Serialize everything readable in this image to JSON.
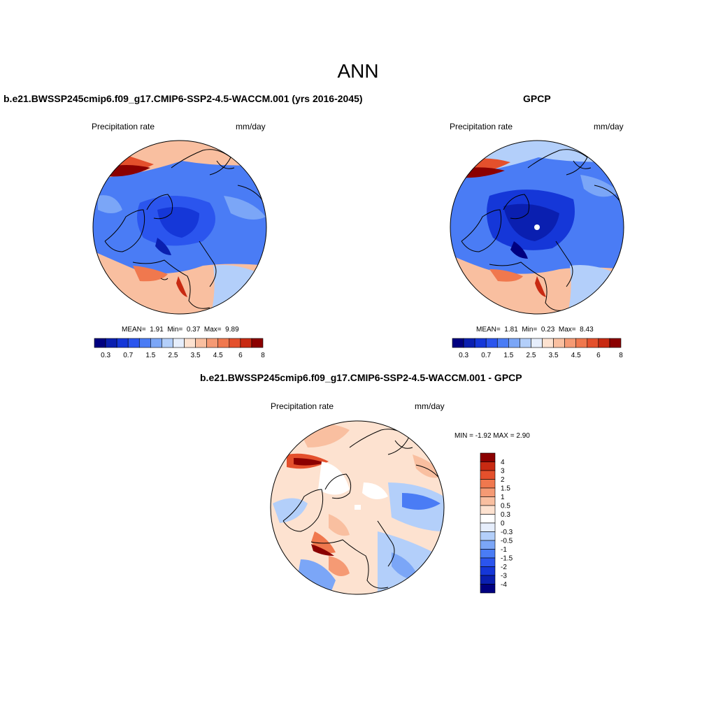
{
  "main_title": "ANN",
  "panels": [
    {
      "title": "b.e21.BWSSP245cmip6.f09_g17.CMIP6-SSP2-4.5-WACCM.001 (yrs 2016-2045)",
      "variable": "Precipitation rate",
      "units": "mm/day",
      "stats": {
        "mean_label": "MEAN=",
        "mean": "1.91",
        "min_label": "Min=",
        "min": "0.37",
        "max_label": "Max=",
        "max": "9.89"
      },
      "colorbar_ticks": [
        "0.3",
        "0.7",
        "1.5",
        "2.5",
        "3.5",
        "4.5",
        "6",
        "8"
      ]
    },
    {
      "title": "GPCP",
      "variable": "Precipitation rate",
      "units": "mm/day",
      "stats": {
        "mean_label": "MEAN=",
        "mean": "1.81",
        "min_label": "Min=",
        "min": "0.23",
        "max_label": "Max=",
        "max": "8.43"
      },
      "colorbar_ticks": [
        "0.3",
        "0.7",
        "1.5",
        "2.5",
        "3.5",
        "4.5",
        "6",
        "8"
      ]
    },
    {
      "title": "b.e21.BWSSP245cmip6.f09_g17.CMIP6-SSP2-4.5-WACCM.001 - GPCP",
      "variable": "Precipitation rate",
      "units": "mm/day",
      "stats_line": "MIN =  -1.92 MAX =   2.90",
      "colorbar_ticks": [
        "4",
        "3",
        "2",
        "1.5",
        "1",
        "0.5",
        "0.3",
        "0",
        "-0.3",
        "-0.5",
        "-1",
        "-1.5",
        "-2",
        "-3",
        "-4"
      ]
    }
  ],
  "colors": {
    "abs_scale": [
      "#000080",
      "#0a1fb0",
      "#1537d8",
      "#2b55ee",
      "#4a7cf5",
      "#7ba6f7",
      "#b3cffa",
      "#e6eefc",
      "#fde2d0",
      "#f9bfa0",
      "#f59a74",
      "#f0784e",
      "#e4502c",
      "#c82a12",
      "#8b0000"
    ],
    "diff_scale": [
      "#8b0000",
      "#c82a12",
      "#e4502c",
      "#f0784e",
      "#f59a74",
      "#f9bfa0",
      "#fde2d0",
      "#ffffff",
      "#e6eefc",
      "#b3cffa",
      "#7ba6f7",
      "#4a7cf5",
      "#2b55ee",
      "#1537d8",
      "#0a1fb0",
      "#000080"
    ]
  }
}
